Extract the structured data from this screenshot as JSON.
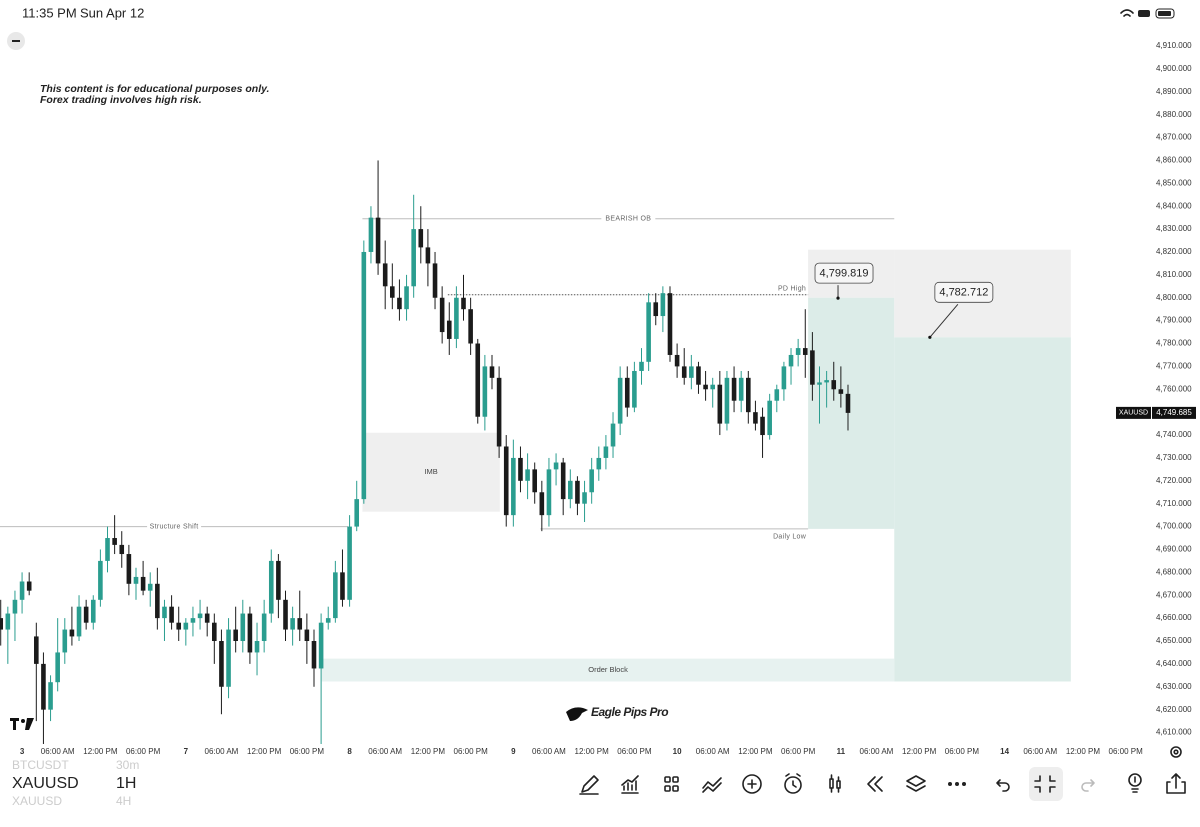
{
  "status": {
    "time": "11:35 PM",
    "date": "Sun Apr 12"
  },
  "disclaimer": [
    "This content is for educational purposes only.",
    "Forex trading involves high risk."
  ],
  "brand": "Eagle Pips Pro",
  "bottom": {
    "symbol": "XAUUSD",
    "interval": "1H",
    "prev_symbol": "BTCUSDT",
    "prev_interval": "30m",
    "next_symbol": "XAUUSD",
    "next_interval": "4H"
  },
  "chart_data": {
    "type": "candlestick",
    "up_color": "#2a9d8f",
    "down_color": "#1b1b1b",
    "xlim": [
      -3.1,
      152.8
    ],
    "ylim": [
      4598,
      4917
    ],
    "xticks": [
      {
        "value": 0,
        "label": "3"
      },
      {
        "value": 5,
        "label": "06:00 AM"
      },
      {
        "value": 11,
        "label": "12:00 PM"
      },
      {
        "value": 17,
        "label": "06:00 PM"
      },
      {
        "value": 23,
        "label": "7"
      },
      {
        "value": 28,
        "label": "06:00 AM"
      },
      {
        "value": 34,
        "label": "12:00 PM"
      },
      {
        "value": 40,
        "label": "06:00 PM"
      },
      {
        "value": 46,
        "label": "8"
      },
      {
        "value": 51,
        "label": "06:00 AM"
      },
      {
        "value": 57,
        "label": "12:00 PM"
      },
      {
        "value": 63,
        "label": "06:00 PM"
      },
      {
        "value": 69,
        "label": "9"
      },
      {
        "value": 74,
        "label": "06:00 AM"
      },
      {
        "value": 80,
        "label": "12:00 PM"
      },
      {
        "value": 86,
        "label": "06:00 PM"
      },
      {
        "value": 92,
        "label": "10"
      },
      {
        "value": 97,
        "label": "06:00 AM"
      },
      {
        "value": 103,
        "label": "12:00 PM"
      },
      {
        "value": 109,
        "label": "06:00 PM"
      },
      {
        "value": 115,
        "label": "11"
      },
      {
        "value": 120,
        "label": "06:00 AM"
      },
      {
        "value": 126,
        "label": "12:00 PM"
      },
      {
        "value": 132,
        "label": "06:00 PM"
      },
      {
        "value": 138,
        "label": "14"
      },
      {
        "value": 143,
        "label": "06:00 AM"
      },
      {
        "value": 149,
        "label": "12:00 PM"
      },
      {
        "value": 155,
        "label": "06:00 PM"
      }
    ],
    "yticks": [
      {
        "value": 4910,
        "label": "4,910.000"
      },
      {
        "value": 4900,
        "label": "4,900.000"
      },
      {
        "value": 4890,
        "label": "4,890.000"
      },
      {
        "value": 4880,
        "label": "4,880.000"
      },
      {
        "value": 4870,
        "label": "4,870.000"
      },
      {
        "value": 4860,
        "label": "4,860.000"
      },
      {
        "value": 4850,
        "label": "4,850.000"
      },
      {
        "value": 4840,
        "label": "4,840.000"
      },
      {
        "value": 4830,
        "label": "4,830.000"
      },
      {
        "value": 4820,
        "label": "4,820.000"
      },
      {
        "value": 4810,
        "label": "4,810.000"
      },
      {
        "value": 4800,
        "label": "4,800.000"
      },
      {
        "value": 4790,
        "label": "4,790.000"
      },
      {
        "value": 4780,
        "label": "4,780.000"
      },
      {
        "value": 4770,
        "label": "4,770.000"
      },
      {
        "value": 4760,
        "label": "4,760.000"
      },
      {
        "value": 4750,
        "label": "4,750.000"
      },
      {
        "value": 4740,
        "label": "4,740.000"
      },
      {
        "value": 4730,
        "label": "4,730.000"
      },
      {
        "value": 4720,
        "label": "4,720.000"
      },
      {
        "value": 4710,
        "label": "4,710.000"
      },
      {
        "value": 4700,
        "label": "4,700.000"
      },
      {
        "value": 4690,
        "label": "4,690.000"
      },
      {
        "value": 4680,
        "label": "4,680.000"
      },
      {
        "value": 4670,
        "label": "4,670.000"
      },
      {
        "value": 4660,
        "label": "4,660.000"
      },
      {
        "value": 4650,
        "label": "4,650.000"
      },
      {
        "value": 4640,
        "label": "4,640.000"
      },
      {
        "value": 4630,
        "label": "4,630.000"
      },
      {
        "value": 4620,
        "label": "4,620.000"
      },
      {
        "value": 4610,
        "label": "4,610.000"
      }
    ],
    "x": [
      -3,
      -2,
      -1,
      0,
      1,
      2,
      3,
      4,
      5,
      6,
      7,
      8,
      9,
      10,
      11,
      12,
      13,
      14,
      15,
      16,
      17,
      18,
      19,
      20,
      21,
      22,
      23,
      24,
      25,
      26,
      27,
      28,
      29,
      30,
      31,
      32,
      33,
      34,
      35,
      36,
      37,
      38,
      39,
      40,
      41,
      42,
      43,
      44,
      45,
      46,
      47,
      48,
      49,
      50,
      51,
      52,
      53,
      54,
      55,
      56,
      57,
      58,
      59,
      60,
      61,
      62,
      63,
      64,
      65,
      66,
      67,
      68,
      69,
      70,
      71,
      72,
      73,
      74,
      75,
      76,
      77,
      78,
      79,
      80,
      81,
      82,
      83,
      84,
      85,
      86,
      87,
      88,
      89,
      90,
      91,
      92,
      93,
      94,
      95,
      96,
      97,
      98,
      99,
      100,
      101,
      102,
      103,
      104,
      105,
      106,
      107,
      108,
      109,
      110,
      111,
      112,
      113,
      114,
      115,
      116
    ],
    "ohlc": [
      [
        4660,
        4668,
        4648,
        4655
      ],
      [
        4655,
        4665,
        4640,
        4662
      ],
      [
        4662,
        4672,
        4650,
        4668
      ],
      [
        4668,
        4680,
        4662,
        4676
      ],
      [
        4676,
        4680,
        4670,
        4672
      ],
      [
        4652,
        4658,
        4615,
        4640
      ],
      [
        4640,
        4645,
        4605,
        4620
      ],
      [
        4620,
        4635,
        4615,
        4632
      ],
      [
        4632,
        4660,
        4628,
        4645
      ],
      [
        4645,
        4660,
        4640,
        4655
      ],
      [
        4655,
        4665,
        4648,
        4652
      ],
      [
        4652,
        4670,
        4650,
        4665
      ],
      [
        4665,
        4668,
        4655,
        4658
      ],
      [
        4658,
        4670,
        4655,
        4668
      ],
      [
        4668,
        4690,
        4665,
        4685
      ],
      [
        4685,
        4700,
        4680,
        4695
      ],
      [
        4695,
        4705,
        4688,
        4692
      ],
      [
        4692,
        4698,
        4682,
        4688
      ],
      [
        4688,
        4692,
        4670,
        4675
      ],
      [
        4675,
        4682,
        4668,
        4678
      ],
      [
        4678,
        4685,
        4670,
        4672
      ],
      [
        4672,
        4680,
        4665,
        4675
      ],
      [
        4675,
        4682,
        4655,
        4660
      ],
      [
        4660,
        4668,
        4650,
        4665
      ],
      [
        4665,
        4670,
        4655,
        4658
      ],
      [
        4658,
        4665,
        4650,
        4655
      ],
      [
        4655,
        4660,
        4648,
        4658
      ],
      [
        4658,
        4665,
        4652,
        4660
      ],
      [
        4660,
        4668,
        4655,
        4662
      ],
      [
        4662,
        4665,
        4652,
        4658
      ],
      [
        4658,
        4662,
        4640,
        4650
      ],
      [
        4650,
        4655,
        4618,
        4630
      ],
      [
        4630,
        4660,
        4625,
        4655
      ],
      [
        4655,
        4665,
        4645,
        4650
      ],
      [
        4650,
        4668,
        4645,
        4662
      ],
      [
        4662,
        4665,
        4640,
        4645
      ],
      [
        4645,
        4658,
        4635,
        4650
      ],
      [
        4650,
        4668,
        4645,
        4662
      ],
      [
        4662,
        4690,
        4658,
        4685
      ],
      [
        4685,
        4688,
        4660,
        4668
      ],
      [
        4668,
        4672,
        4650,
        4655
      ],
      [
        4655,
        4665,
        4648,
        4660
      ],
      [
        4660,
        4672,
        4650,
        4655
      ],
      [
        4655,
        4662,
        4640,
        4650
      ],
      [
        4650,
        4655,
        4630,
        4638
      ],
      [
        4638,
        4662,
        4605,
        4658
      ],
      [
        4658,
        4665,
        4655,
        4660
      ],
      [
        4660,
        4685,
        4658,
        4680
      ],
      [
        4680,
        4690,
        4665,
        4668
      ],
      [
        4668,
        4705,
        4665,
        4700
      ],
      [
        4700,
        4720,
        4698,
        4712
      ],
      [
        4712,
        4825,
        4710,
        4820
      ],
      [
        4820,
        4840,
        4815,
        4835
      ],
      [
        4835,
        4860,
        4810,
        4815
      ],
      [
        4815,
        4825,
        4795,
        4805
      ],
      [
        4805,
        4815,
        4795,
        4800
      ],
      [
        4800,
        4808,
        4790,
        4795
      ],
      [
        4795,
        4810,
        4790,
        4805
      ],
      [
        4805,
        4845,
        4800,
        4830
      ],
      [
        4830,
        4840,
        4815,
        4822
      ],
      [
        4822,
        4830,
        4805,
        4815
      ],
      [
        4815,
        4820,
        4795,
        4800
      ],
      [
        4800,
        4805,
        4780,
        4785
      ],
      [
        4790,
        4798,
        4775,
        4782
      ],
      [
        4782,
        4805,
        4778,
        4800
      ],
      [
        4800,
        4810,
        4790,
        4795
      ],
      [
        4795,
        4800,
        4775,
        4780
      ],
      [
        4780,
        4782,
        4745,
        4748
      ],
      [
        4748,
        4775,
        4742,
        4770
      ],
      [
        4770,
        4775,
        4760,
        4765
      ],
      [
        4765,
        4770,
        4730,
        4735
      ],
      [
        4735,
        4740,
        4700,
        4705
      ],
      [
        4705,
        4738,
        4700,
        4730
      ],
      [
        4730,
        4735,
        4715,
        4720
      ],
      [
        4720,
        4732,
        4712,
        4725
      ],
      [
        4725,
        4728,
        4710,
        4715
      ],
      [
        4715,
        4720,
        4698,
        4705
      ],
      [
        4705,
        4730,
        4700,
        4725
      ],
      [
        4725,
        4732,
        4718,
        4728
      ],
      [
        4728,
        4730,
        4705,
        4712
      ],
      [
        4712,
        4725,
        4708,
        4720
      ],
      [
        4720,
        4722,
        4705,
        4710
      ],
      [
        4710,
        4720,
        4702,
        4715
      ],
      [
        4715,
        4730,
        4710,
        4725
      ],
      [
        4725,
        4735,
        4720,
        4730
      ],
      [
        4730,
        4740,
        4725,
        4735
      ],
      [
        4735,
        4750,
        4730,
        4745
      ],
      [
        4745,
        4770,
        4740,
        4765
      ],
      [
        4765,
        4770,
        4748,
        4752
      ],
      [
        4752,
        4772,
        4750,
        4768
      ],
      [
        4768,
        4778,
        4762,
        4772
      ],
      [
        4772,
        4802,
        4768,
        4798
      ],
      [
        4798,
        4802,
        4788,
        4792
      ],
      [
        4792,
        4805,
        4785,
        4802
      ],
      [
        4802,
        4805,
        4772,
        4775
      ],
      [
        4775,
        4780,
        4765,
        4770
      ],
      [
        4770,
        4778,
        4762,
        4765
      ],
      [
        4765,
        4775,
        4760,
        4770
      ],
      [
        4770,
        4772,
        4758,
        4762
      ],
      [
        4762,
        4768,
        4755,
        4760
      ],
      [
        4760,
        4765,
        4752,
        4762
      ],
      [
        4762,
        4768,
        4740,
        4745
      ],
      [
        4745,
        4768,
        4742,
        4765
      ],
      [
        4765,
        4770,
        4750,
        4755
      ],
      [
        4755,
        4768,
        4750,
        4765
      ],
      [
        4765,
        4768,
        4745,
        4750
      ],
      [
        4750,
        4755,
        4742,
        4745
      ],
      [
        4748,
        4752,
        4730,
        4740
      ],
      [
        4740,
        4758,
        4738,
        4755
      ],
      [
        4755,
        4762,
        4750,
        4760
      ],
      [
        4760,
        4772,
        4755,
        4770
      ],
      [
        4770,
        4778,
        4762,
        4775
      ],
      [
        4775,
        4782,
        4770,
        4778
      ],
      [
        4778,
        4795,
        4765,
        4775
      ],
      [
        4777,
        4785,
        4755,
        4762
      ],
      [
        4762,
        4770,
        4745,
        4763
      ],
      [
        4763,
        4768,
        4752,
        4764
      ],
      [
        4764,
        4772,
        4755,
        4760
      ],
      [
        4760,
        4770,
        4752,
        4758
      ],
      [
        4758,
        4762,
        4742,
        4749.685
      ]
    ],
    "price_line": {
      "name": "XAUUSD",
      "value": 4749.685,
      "label": "4,749.685"
    },
    "levels": [
      {
        "label": "BEARISH OB",
        "value": 4834.5,
        "x": [
          47.8,
          122.5
        ],
        "style": "solid",
        "label_pos": "middle"
      },
      {
        "label": "PD High",
        "value": 4801.3,
        "x": [
          59.8,
          110.4
        ],
        "style": "dotted",
        "label_pos": "end-above"
      },
      {
        "label": "Daily Low",
        "value": 4699,
        "x": [
          72.8,
          110.4
        ],
        "style": "solid",
        "label_pos": "end-below"
      },
      {
        "label": "Structure Shift",
        "value": 4700,
        "x": [
          -3.1,
          45.8
        ],
        "style": "solid",
        "label_pos": "middle"
      }
    ],
    "zones": [
      {
        "label": "IMB",
        "x": [
          47.8,
          67.1
        ],
        "y": [
          4706.5,
          4741
        ],
        "color": "#efefef"
      },
      {
        "label": "Order Block",
        "x": [
          42.1,
          122.5
        ],
        "y": [
          4632.3,
          4642.3
        ],
        "color": "#e7f2f0"
      },
      {
        "x": [
          110.4,
          122.5
        ],
        "y": [
          4800,
          4821
        ],
        "color": "#efefef"
      },
      {
        "x": [
          110.4,
          122.5
        ],
        "y": [
          4699,
          4800
        ],
        "color": "#dcece8"
      },
      {
        "x": [
          122.5,
          147.3
        ],
        "y": [
          4782.7,
          4821
        ],
        "color": "#efefef"
      },
      {
        "x": [
          122.5,
          147.3
        ],
        "y": [
          4632.3,
          4782.7
        ],
        "color": "#dcece8"
      }
    ],
    "callouts": [
      {
        "label": "4,799.819",
        "value": 4799.819,
        "x": 114.6
      },
      {
        "label": "4,782.712",
        "value": 4782.712,
        "x": 127.5
      }
    ]
  }
}
